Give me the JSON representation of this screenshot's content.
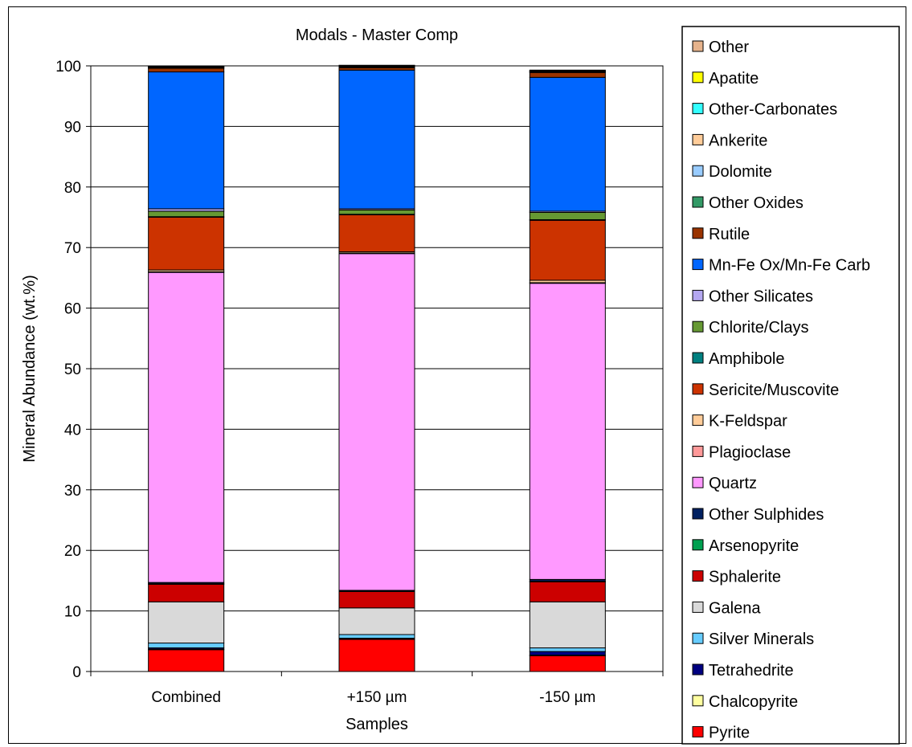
{
  "chart_data": {
    "type": "bar",
    "stacked": true,
    "title": "Modals - Master Comp",
    "xlabel": "Samples",
    "ylabel": "Mineral Abundance (wt.%)",
    "ylim": [
      0,
      100
    ],
    "yticks": [
      "0",
      "10",
      "20",
      "30",
      "40",
      "50",
      "60",
      "70",
      "80",
      "90",
      "100"
    ],
    "grid": true,
    "legend_position": "right",
    "categories": [
      "Combined",
      "+150 µm",
      "-150 µm"
    ],
    "series": [
      {
        "name": "Pyrite",
        "color": "#ff0000",
        "values": [
          3.6,
          5.3,
          2.6
        ]
      },
      {
        "name": "Chalcopyrite",
        "color": "#ffffa0",
        "values": [
          0.1,
          0.1,
          0.1
        ]
      },
      {
        "name": "Tetrahedrite",
        "color": "#000080",
        "values": [
          0.2,
          0.1,
          0.6
        ]
      },
      {
        "name": "Silver Minerals",
        "color": "#66ccff",
        "values": [
          0.8,
          0.6,
          0.6
        ]
      },
      {
        "name": "Galena",
        "color": "#d9d9d9",
        "values": [
          6.8,
          4.4,
          7.6
        ]
      },
      {
        "name": "Sphalerite",
        "color": "#cc0000",
        "values": [
          2.9,
          2.7,
          3.3
        ]
      },
      {
        "name": "Arsenopyrite",
        "color": "#00a050",
        "values": [
          0.1,
          0.1,
          0.1
        ]
      },
      {
        "name": "Other Sulphides",
        "color": "#002060",
        "values": [
          0.2,
          0.1,
          0.3
        ]
      },
      {
        "name": "Quartz",
        "color": "#ff99ff",
        "values": [
          51.2,
          55.6,
          48.9
        ]
      },
      {
        "name": "Plagioclase",
        "color": "#ff9999",
        "values": [
          0.1,
          0.1,
          0.1
        ]
      },
      {
        "name": "K-Feldspar",
        "color": "#ffcc99",
        "values": [
          0.3,
          0.2,
          0.4
        ]
      },
      {
        "name": "Sericite/Muscovite",
        "color": "#cc3300",
        "values": [
          8.7,
          6.1,
          9.9
        ]
      },
      {
        "name": "Amphibole",
        "color": "#008080",
        "values": [
          0.1,
          0.1,
          0.1
        ]
      },
      {
        "name": "Chlorite/Clays",
        "color": "#669933",
        "values": [
          0.9,
          0.7,
          1.2
        ]
      },
      {
        "name": "Other Silicates",
        "color": "#b4a7f0",
        "values": [
          0.4,
          0.2,
          0.2
        ]
      },
      {
        "name": "Mn-Fe Ox/Mn-Fe Carb",
        "color": "#0066ff",
        "values": [
          22.6,
          22.9,
          22.1
        ]
      },
      {
        "name": "Rutile",
        "color": "#993300",
        "values": [
          0.6,
          0.4,
          0.8
        ]
      },
      {
        "name": "Other Oxides",
        "color": "#339966",
        "values": [
          0.1,
          0.1,
          0.1
        ]
      },
      {
        "name": "Dolomite",
        "color": "#99ccff",
        "values": [
          0.1,
          0.1,
          0.1
        ]
      },
      {
        "name": "Ankerite",
        "color": "#ffcc99",
        "values": [
          0.1,
          0.1,
          0.1
        ]
      },
      {
        "name": "Other-Carbonates",
        "color": "#33ffff",
        "values": [
          0.0,
          0.0,
          0.0
        ]
      },
      {
        "name": "Apatite",
        "color": "#ffff00",
        "values": [
          0.1,
          0.1,
          0.1
        ]
      },
      {
        "name": "Other",
        "color": "#e6b38c",
        "values": [
          0.0,
          0.0,
          0.0
        ]
      }
    ]
  }
}
